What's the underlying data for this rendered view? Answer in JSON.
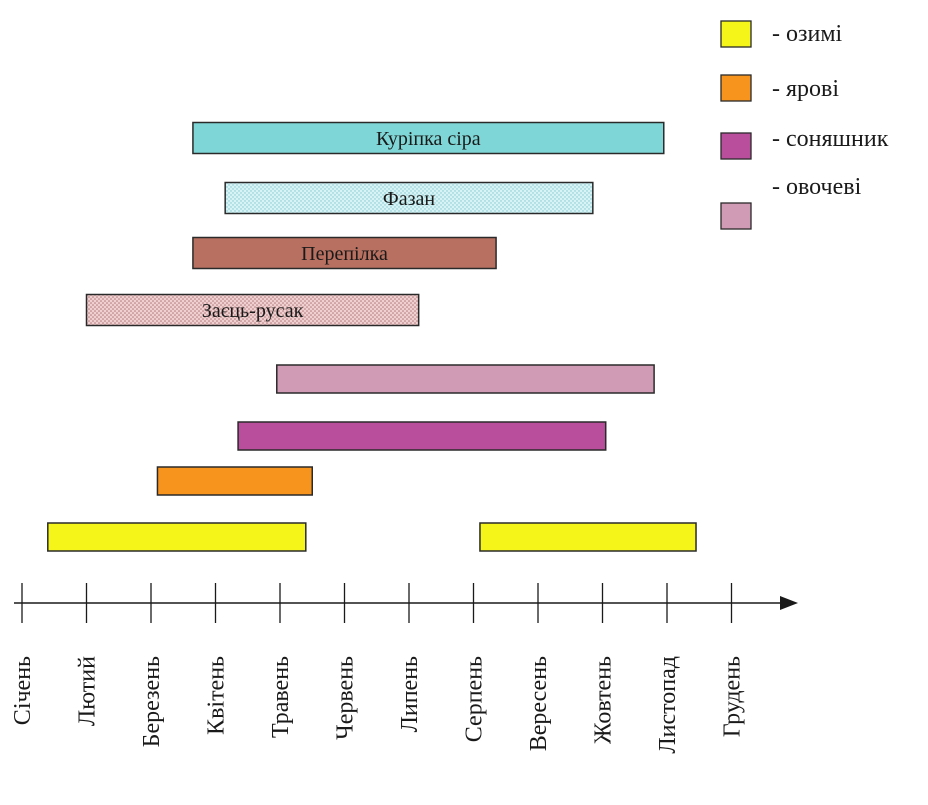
{
  "chart_data": {
    "type": "bar",
    "orientation": "horizontal-timeline",
    "months": [
      "Січень",
      "Лютий",
      "Березень",
      "Квітень",
      "Травень",
      "Червень",
      "Липень",
      "Серпень",
      "Вересень",
      "Жовтень",
      "Листопад",
      "Грудень"
    ],
    "species_bars": [
      {
        "label": "Куріпка сіра",
        "start": 3.65,
        "end": 10.95,
        "color": "#7fd6d6",
        "pattern": "solid"
      },
      {
        "label": "Фазан",
        "start": 4.15,
        "end": 9.85,
        "color": "#cdeff2",
        "pattern": "dotted"
      },
      {
        "label": "Перепілка",
        "start": 3.65,
        "end": 8.35,
        "color": "#b87060",
        "pattern": "solid"
      },
      {
        "label": "Заєць-русак",
        "start": 2.0,
        "end": 7.15,
        "color": "#e0b0b0",
        "pattern": "dotted"
      }
    ],
    "crop_bars": [
      {
        "crop": "овочеві",
        "start": 4.95,
        "end": 10.8
      },
      {
        "crop": "соняшник",
        "start": 4.35,
        "end": 10.05
      },
      {
        "crop": "ярові",
        "start": 3.1,
        "end": 5.5
      },
      {
        "crop": "озимі",
        "start": 1.4,
        "end": 5.4
      },
      {
        "crop": "озимі",
        "start": 8.1,
        "end": 11.45
      }
    ],
    "legend": [
      {
        "crop": "озимі",
        "label": "- озимі",
        "color": "#f5f51a"
      },
      {
        "crop": "ярові",
        "label": "- ярові",
        "color": "#f7941d"
      },
      {
        "crop": "соняшник",
        "label": "- соняшник",
        "color": "#b84e9c"
      },
      {
        "crop": "овочеві",
        "label": "- овочеві",
        "color": "#d09bb5"
      }
    ],
    "legend_position": "top-right",
    "grid": false
  }
}
